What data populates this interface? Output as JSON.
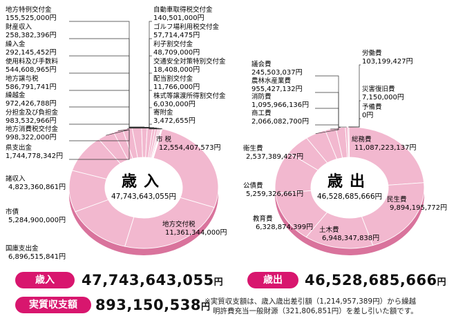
{
  "chart_data": [
    {
      "type": "pie",
      "title": "歳入",
      "total": "47,743,643,055円",
      "unit": "円",
      "slices": [
        {
          "label": "市 税",
          "value": 12554407573,
          "display": "12,554,407,573円"
        },
        {
          "label": "地方交付税",
          "value": 11361344000,
          "display": "11,361,344,000円"
        },
        {
          "label": "国庫支出金",
          "value": 6896515841,
          "display": "6,896,515,841円"
        },
        {
          "label": "市債",
          "value": 5284900000,
          "display": "5,284,900,000円"
        },
        {
          "label": "諸収入",
          "value": 4823360861,
          "display": "4,823,360,861円"
        },
        {
          "label": "県支出金",
          "value": 1744778342,
          "display": "1,744,778,342円"
        },
        {
          "label": "地方消費税交付金",
          "value": 998322000,
          "display": "998,322,000円"
        },
        {
          "label": "分担金及び負担金",
          "value": 983532966,
          "display": "983,532,966円"
        },
        {
          "label": "繰越金",
          "value": 972426788,
          "display": "972,426,788円"
        },
        {
          "label": "地方譲与税",
          "value": 586791741,
          "display": "586,791,741円"
        },
        {
          "label": "使用料及び手数料",
          "value": 544608965,
          "display": "544,608,965円"
        },
        {
          "label": "繰入金",
          "value": 292145452,
          "display": "292,145,452円"
        },
        {
          "label": "財産収入",
          "value": 258382396,
          "display": "258,382,396円"
        },
        {
          "label": "地方特例交付金",
          "value": 155525000,
          "display": "155,525,000円"
        },
        {
          "label": "自動車取得税交付金",
          "value": 140501000,
          "display": "140,501,000円"
        },
        {
          "label": "ゴルフ場利用税交付金",
          "value": 57714475,
          "display": "57,714,475円"
        },
        {
          "label": "利子割交付金",
          "value": 48709000,
          "display": "48,709,000円"
        },
        {
          "label": "交通安全対策特別交付金",
          "value": 18408000,
          "display": "18,408,000円"
        },
        {
          "label": "配当割交付金",
          "value": 11766000,
          "display": "11,766,000円"
        },
        {
          "label": "株式等譲渡所得割交付金",
          "value": 6030000,
          "display": "6,030,000円"
        },
        {
          "label": "寄附金",
          "value": 3472655,
          "display": "3,472,655円"
        }
      ]
    },
    {
      "type": "pie",
      "title": "歳出",
      "total": "46,528,685,666円",
      "unit": "円",
      "slices": [
        {
          "label": "総務費",
          "value": 11087223137,
          "display": "11,087,223,137円"
        },
        {
          "label": "民生費",
          "value": 9894195772,
          "display": "9,894,195,772円"
        },
        {
          "label": "土木費",
          "value": 6948347838,
          "display": "6,948,347,838円"
        },
        {
          "label": "教育費",
          "value": 6328874399,
          "display": "6,328,874,399円"
        },
        {
          "label": "公債費",
          "value": 5259326661,
          "display": "5,259,326,661円"
        },
        {
          "label": "衛生費",
          "value": 2537389427,
          "display": "2,537,389,427円"
        },
        {
          "label": "商工費",
          "value": 2066082700,
          "display": "2,066,082,700円"
        },
        {
          "label": "消防費",
          "value": 1095966136,
          "display": "1,095,966,136円"
        },
        {
          "label": "農林水産業費",
          "value": 955427132,
          "display": "955,427,132円"
        },
        {
          "label": "議会費",
          "value": 245503037,
          "display": "245,503,037円"
        },
        {
          "label": "労働費",
          "value": 103199427,
          "display": "103,199,427円"
        },
        {
          "label": "災害復旧費",
          "value": 7150000,
          "display": "7,150,000円"
        },
        {
          "label": "予備費",
          "value": 0,
          "display": "0円"
        }
      ]
    }
  ],
  "summary": {
    "revenue_label": "歳入",
    "revenue_amount": "47,743,643,055",
    "expenditure_label": "歳出",
    "expenditure_amount": "46,528,685,666",
    "balance_label": "実質収支額",
    "balance_amount": "893,150,538",
    "yen": "円",
    "note_line1": "※実質収支額は、歳入歳出差引額（1,214,957,389円）から繰越",
    "note_line2": "明許費充当一般財源（321,806,851円）を差し引いた額です。"
  },
  "colors": {
    "ring_fill": "#f2b8cf",
    "ring_side": "#d9739c",
    "divider": "#ffffff",
    "accent": "#d8166e"
  }
}
